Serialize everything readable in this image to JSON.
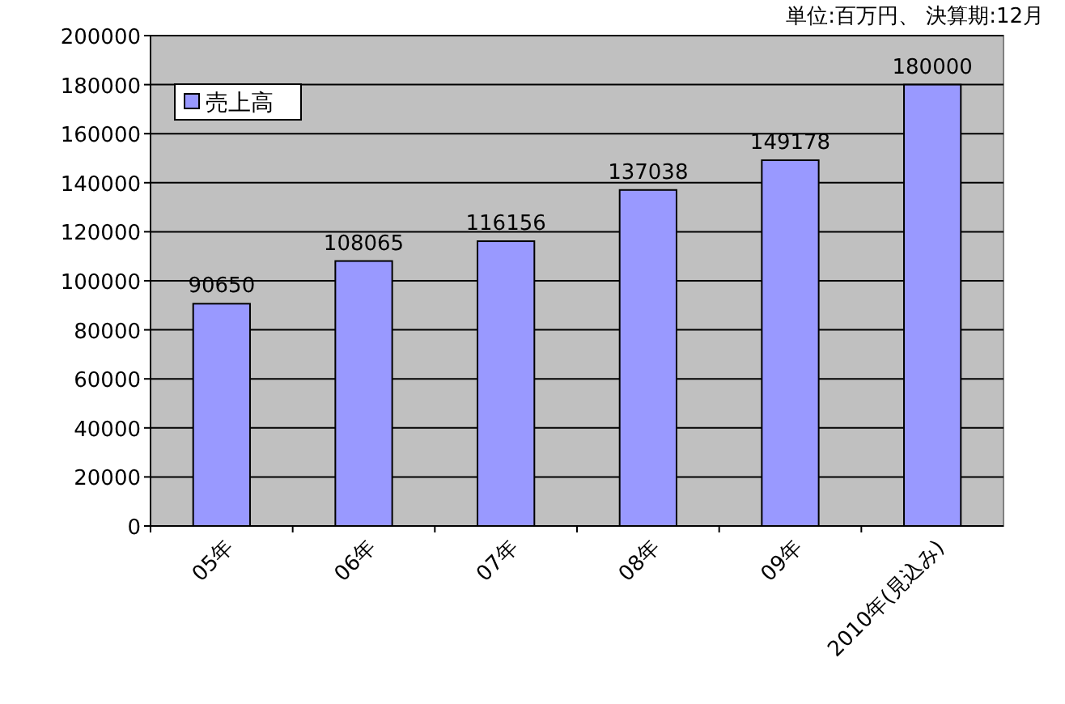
{
  "chart_data": {
    "type": "bar",
    "annotations": [
      "単位:百万円、 決算期:12月"
    ],
    "categories": [
      "05年",
      "06年",
      "07年",
      "08年",
      "09年",
      "2010年(見込み)"
    ],
    "series": [
      {
        "name": "売上高",
        "color": "#9999ff",
        "values": [
          90650,
          108065,
          116156,
          137038,
          149178,
          180000
        ]
      }
    ],
    "ylim": [
      0,
      200000
    ],
    "yticks": [
      0,
      20000,
      40000,
      60000,
      80000,
      100000,
      120000,
      140000,
      160000,
      180000,
      200000
    ],
    "grid": "y",
    "legend": "top left",
    "data_labels": true
  }
}
